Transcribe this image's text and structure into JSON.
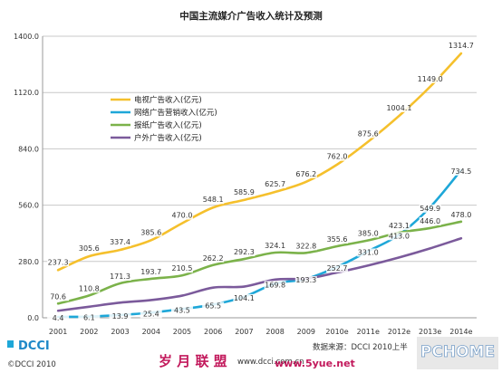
{
  "chart_data": {
    "type": "line",
    "title": "中国主流媒介广告收入统计及预测",
    "categories": [
      "2001",
      "2002",
      "2003",
      "2004",
      "2005",
      "2006",
      "2007",
      "2008",
      "2009",
      "2010e",
      "2011e",
      "2012e",
      "2013e",
      "2014e"
    ],
    "ylim": [
      0,
      1400
    ],
    "yticks": [
      "0.0",
      "280.0",
      "560.0",
      "840.0",
      "1120.0",
      "1400.0"
    ],
    "grid": true,
    "legend_position": "upper-left",
    "series": [
      {
        "name": "电视广告收入(亿元)",
        "color": "#F5C02C",
        "values": [
          237.3,
          305.6,
          337.4,
          385.6,
          470.0,
          548.1,
          585.9,
          625.7,
          676.2,
          762.0,
          875.6,
          1004.1,
          1149.0,
          1314.7
        ],
        "labels": [
          "237.3",
          "305.6",
          "337.4",
          "385.6",
          "470.0",
          "548.1",
          "585.9",
          "625.7",
          "676.2",
          "762.0",
          "875.6",
          "1004.1",
          "1149.0",
          "1314.7"
        ]
      },
      {
        "name": "网络广告营销收入(亿元)",
        "color": "#1EA7D8",
        "values": [
          4.4,
          6.1,
          13.9,
          25.4,
          43.5,
          65.5,
          104.1,
          169.8,
          193.3,
          252.7,
          331.0,
          413.0,
          549.9,
          734.5
        ],
        "labels": [
          "4.4",
          "6.1",
          "13.9",
          "25.4",
          "43.5",
          "65.5",
          "104.1",
          "169.8",
          "193.3",
          "252.7",
          "331.0",
          "413.0",
          "549.9",
          "734.5"
        ]
      },
      {
        "name": "报纸广告收入(亿元)",
        "color": "#7BB24A",
        "values": [
          70.6,
          110.8,
          171.3,
          193.7,
          210.5,
          262.2,
          292.3,
          324.1,
          322.8,
          355.6,
          385.0,
          423.1,
          446.0,
          478.0
        ],
        "labels": [
          "70.6",
          "110.8",
          "171.3",
          "193.7",
          "210.5",
          "262.2",
          "292.3",
          "324.1",
          "322.8",
          "355.6",
          "385.0",
          "423.1",
          "446.0",
          "478.0"
        ]
      },
      {
        "name": "户外广告收入(亿元)",
        "color": "#7B5A9B",
        "values": [
          35,
          55,
          75,
          88,
          110,
          150,
          155,
          190,
          195,
          225,
          260,
          300,
          345,
          395
        ],
        "labels": []
      }
    ]
  },
  "footer": {
    "logo": "DCCI",
    "copyright": "©DCCI 2010",
    "source": "数据来源：DCCI 2010上半",
    "watermark": "岁 月 联 盟",
    "url": "www.dcci.com.cn",
    "url2": "www.5yue.net",
    "badge": "PCHOME"
  }
}
